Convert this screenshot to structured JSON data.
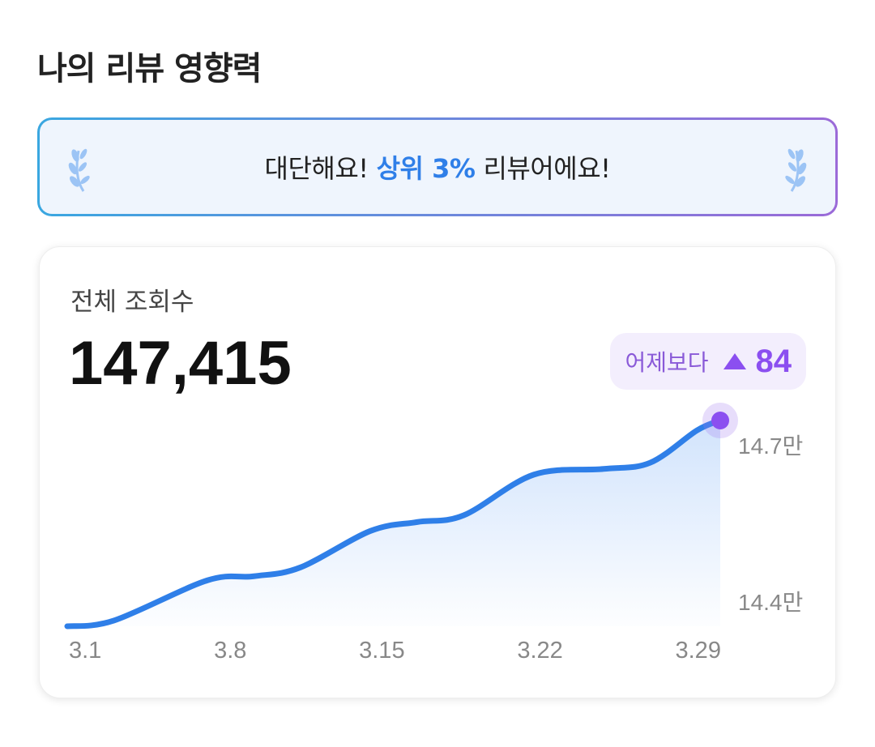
{
  "page": {
    "title": "나의 리뷰 영향력"
  },
  "banner": {
    "prefix": "대단해요!",
    "highlight": "상위 3%",
    "suffix": "리뷰어에요!",
    "icon": "laurel-icon"
  },
  "views_card": {
    "label": "전체 조회수",
    "value": "147,415",
    "change": {
      "prefix": "어제보다",
      "icon": "triangle-up-icon",
      "amount": "84"
    }
  },
  "colors": {
    "accent_blue": "#2f7fe8",
    "accent_purple": "#8b4ff0"
  },
  "chart_data": {
    "type": "area",
    "title": "전체 조회수",
    "x_unit": "day of March",
    "x": [
      1,
      3,
      7,
      9,
      11,
      14,
      16,
      18,
      21,
      24,
      26,
      28,
      29
    ],
    "series": [
      {
        "name": "조회수 (만)",
        "values": [
          14.347,
          14.358,
          14.435,
          14.443,
          14.46,
          14.53,
          14.547,
          14.56,
          14.638,
          14.649,
          14.661,
          14.723,
          14.742
        ]
      }
    ],
    "xticks": [
      "3.1",
      "3.8",
      "3.15",
      "3.22",
      "3.29"
    ],
    "yticks": [
      {
        "value": 14.7,
        "label": "14.7만"
      },
      {
        "value": 14.4,
        "label": "14.4만"
      }
    ],
    "xlim": [
      1,
      29
    ],
    "ylim": [
      14.347,
      14.742
    ],
    "grid": false,
    "legend": "none"
  }
}
